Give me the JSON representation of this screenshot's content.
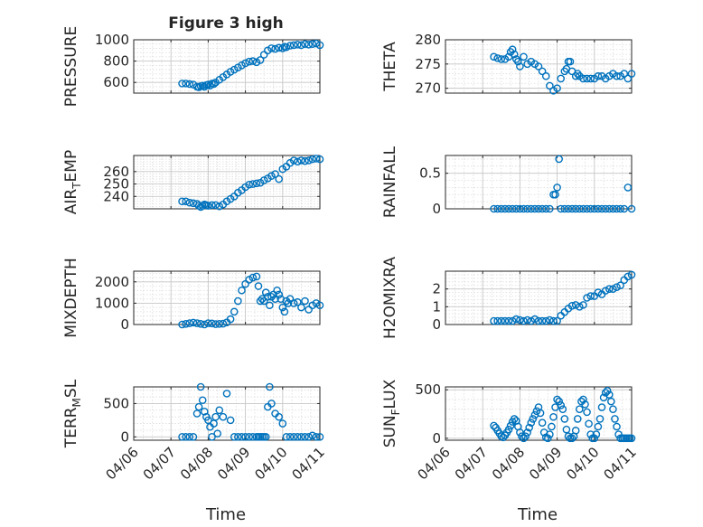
{
  "title": "Figure 3 high",
  "xlabel": "Time",
  "x_tick_labels": [
    "04/06",
    "04/07",
    "04/08",
    "04/09",
    "04/10",
    "04/11"
  ],
  "colors": {
    "marker": "#0072BD",
    "axes": "#262626",
    "grid": "#dcdcdc",
    "background": "#ffffff"
  },
  "chart_data": [
    {
      "type": "scatter",
      "ylabel": "PRESSURE",
      "xlim": [
        "04/06",
        "04/11"
      ],
      "ylim": [
        500,
        1000
      ],
      "yticks": [
        600,
        800,
        1000
      ],
      "grid": true,
      "x": [
        1.3,
        1.4,
        1.5,
        1.6,
        1.7,
        1.75,
        1.8,
        1.85,
        1.9,
        1.95,
        2.0,
        2.05,
        2.1,
        2.15,
        2.2,
        2.3,
        2.4,
        2.5,
        2.6,
        2.7,
        2.8,
        2.9,
        3.0,
        3.1,
        3.2,
        3.3,
        3.4,
        3.5,
        3.6,
        3.7,
        3.8,
        3.9,
        4.0,
        4.05,
        4.1,
        4.2,
        4.3,
        4.4,
        4.5,
        4.6,
        4.7,
        4.8,
        4.9,
        5.0
      ],
      "y": [
        590,
        590,
        585,
        580,
        560,
        555,
        565,
        570,
        560,
        575,
        580,
        570,
        590,
        585,
        600,
        625,
        650,
        675,
        700,
        720,
        740,
        760,
        780,
        795,
        800,
        790,
        810,
        860,
        900,
        920,
        915,
        925,
        920,
        935,
        930,
        945,
        950,
        955,
        950,
        960,
        955,
        960,
        965,
        950
      ]
    },
    {
      "type": "scatter",
      "ylabel": "THETA",
      "xlim": [
        "04/06",
        "04/11"
      ],
      "ylim": [
        269,
        280
      ],
      "yticks": [
        270,
        275,
        280
      ],
      "grid": true,
      "x": [
        1.3,
        1.4,
        1.5,
        1.6,
        1.7,
        1.75,
        1.8,
        1.85,
        1.9,
        1.95,
        2.0,
        2.1,
        2.2,
        2.3,
        2.4,
        2.5,
        2.6,
        2.7,
        2.8,
        2.9,
        3.0,
        3.1,
        3.2,
        3.25,
        3.3,
        3.35,
        3.4,
        3.5,
        3.55,
        3.6,
        3.7,
        3.8,
        3.9,
        4.0,
        4.1,
        4.2,
        4.3,
        4.4,
        4.5,
        4.6,
        4.7,
        4.8,
        4.9,
        5.0
      ],
      "y": [
        276.5,
        276.2,
        276.0,
        276.0,
        276.5,
        277.5,
        278.0,
        277.0,
        276.0,
        275.5,
        274.5,
        276.5,
        275.0,
        275.5,
        275.0,
        274.5,
        273.5,
        272.5,
        270.5,
        269.5,
        270.0,
        272.0,
        273.5,
        274.0,
        275.5,
        275.5,
        273.5,
        272.5,
        273.0,
        272.5,
        272.0,
        272.0,
        272.0,
        272.0,
        272.5,
        272.5,
        272.0,
        272.5,
        273.0,
        272.5,
        272.5,
        273.0,
        272.0,
        273.0
      ]
    },
    {
      "type": "scatter",
      "ylabel": "AIR_TEMP",
      "xlim": [
        "04/06",
        "04/11"
      ],
      "ylim": [
        230,
        273
      ],
      "yticks": [
        240,
        250,
        260
      ],
      "grid": true,
      "x": [
        1.3,
        1.4,
        1.5,
        1.6,
        1.7,
        1.75,
        1.8,
        1.85,
        1.9,
        1.95,
        2.0,
        2.1,
        2.2,
        2.3,
        2.4,
        2.5,
        2.6,
        2.7,
        2.8,
        2.9,
        3.0,
        3.1,
        3.2,
        3.3,
        3.4,
        3.5,
        3.6,
        3.7,
        3.8,
        3.9,
        4.0,
        4.1,
        4.2,
        4.3,
        4.4,
        4.5,
        4.6,
        4.7,
        4.8,
        4.9,
        5.0
      ],
      "y": [
        236,
        236,
        235,
        234.5,
        234,
        232.5,
        231.5,
        232.5,
        233.5,
        233,
        232.5,
        233,
        233,
        232,
        233.5,
        236,
        238,
        240,
        243,
        245,
        247.5,
        249.5,
        250,
        250.5,
        251,
        253,
        254.5,
        256.5,
        258,
        254,
        262,
        264,
        267,
        269,
        268,
        269,
        268.5,
        269,
        270,
        270.5,
        270
      ]
    },
    {
      "type": "scatter",
      "ylabel": "RAINFALL",
      "xlim": [
        "04/06",
        "04/11"
      ],
      "ylim": [
        0,
        0.75
      ],
      "yticks": [
        0,
        0.5
      ],
      "grid": true,
      "x": [
        1.3,
        1.4,
        1.5,
        1.6,
        1.7,
        1.8,
        1.9,
        2.0,
        2.1,
        2.2,
        2.3,
        2.4,
        2.5,
        2.6,
        2.7,
        2.8,
        2.9,
        2.95,
        3.0,
        3.05,
        3.1,
        3.2,
        3.3,
        3.4,
        3.5,
        3.6,
        3.7,
        3.8,
        3.9,
        4.0,
        4.1,
        4.2,
        4.3,
        4.4,
        4.5,
        4.6,
        4.7,
        4.8,
        4.9,
        5.0
      ],
      "y": [
        0,
        0,
        0,
        0,
        0,
        0,
        0,
        0,
        0,
        0,
        0,
        0,
        0,
        0,
        0,
        0,
        0.2,
        0.2,
        0.3,
        0.7,
        0,
        0,
        0,
        0,
        0,
        0,
        0,
        0,
        0,
        0,
        0,
        0,
        0,
        0,
        0,
        0,
        0,
        0,
        0.3,
        0
      ]
    },
    {
      "type": "scatter",
      "ylabel": "MIXDEPTH",
      "xlim": [
        "04/06",
        "04/11"
      ],
      "ylim": [
        0,
        2500
      ],
      "yticks": [
        0,
        1000,
        2000
      ],
      "grid": true,
      "x": [
        1.3,
        1.4,
        1.5,
        1.6,
        1.7,
        1.8,
        1.9,
        2.0,
        2.1,
        2.2,
        2.3,
        2.4,
        2.5,
        2.6,
        2.7,
        2.8,
        2.9,
        3.0,
        3.1,
        3.2,
        3.3,
        3.35,
        3.4,
        3.45,
        3.5,
        3.55,
        3.6,
        3.65,
        3.7,
        3.75,
        3.8,
        3.85,
        3.9,
        3.95,
        4.0,
        4.05,
        4.1,
        4.15,
        4.2,
        4.3,
        4.4,
        4.5,
        4.6,
        4.7,
        4.8,
        4.9,
        5.0
      ],
      "y": [
        0,
        30,
        60,
        90,
        60,
        30,
        0,
        60,
        50,
        20,
        30,
        40,
        100,
        250,
        600,
        1100,
        1600,
        1900,
        2100,
        2200,
        2250,
        1800,
        1100,
        1200,
        1100,
        1500,
        1300,
        900,
        1300,
        1400,
        1200,
        1600,
        1400,
        1200,
        800,
        600,
        1100,
        1000,
        1200,
        1000,
        1050,
        800,
        1100,
        700,
        900,
        1000,
        900
      ]
    },
    {
      "type": "scatter",
      "ylabel": "H2OMIXRA",
      "xlim": [
        "04/06",
        "04/11"
      ],
      "ylim": [
        0,
        3
      ],
      "yticks": [
        0,
        1,
        2
      ],
      "grid": true,
      "x": [
        1.3,
        1.4,
        1.5,
        1.6,
        1.7,
        1.8,
        1.9,
        2.0,
        2.1,
        2.2,
        2.3,
        2.4,
        2.5,
        2.6,
        2.7,
        2.8,
        2.9,
        3.0,
        3.1,
        3.2,
        3.3,
        3.4,
        3.5,
        3.6,
        3.7,
        3.8,
        3.9,
        4.0,
        4.1,
        4.2,
        4.3,
        4.4,
        4.5,
        4.6,
        4.7,
        4.8,
        4.9,
        5.0
      ],
      "y": [
        0.2,
        0.2,
        0.2,
        0.2,
        0.2,
        0.2,
        0.3,
        0.25,
        0.2,
        0.25,
        0.2,
        0.3,
        0.2,
        0.2,
        0.2,
        0.25,
        0.2,
        0.2,
        0.5,
        0.7,
        0.9,
        1.05,
        1.1,
        1.0,
        1.1,
        1.5,
        1.6,
        1.6,
        1.8,
        1.7,
        1.9,
        2.0,
        2.0,
        2.1,
        2.2,
        2.5,
        2.7,
        2.8
      ]
    },
    {
      "type": "scatter",
      "ylabel": "TERR_MSL",
      "xlim": [
        "04/06",
        "04/11"
      ],
      "ylim": [
        -50,
        750
      ],
      "yticks": [
        0,
        500
      ],
      "grid": true,
      "x": [
        1.3,
        1.4,
        1.5,
        1.6,
        1.7,
        1.75,
        1.8,
        1.85,
        1.9,
        1.95,
        2.0,
        2.05,
        2.1,
        2.15,
        2.2,
        2.25,
        2.3,
        2.4,
        2.5,
        2.6,
        2.7,
        2.8,
        2.9,
        3.0,
        3.1,
        3.2,
        3.3,
        3.35,
        3.4,
        3.45,
        3.5,
        3.55,
        3.6,
        3.65,
        3.7,
        3.8,
        3.9,
        4.0,
        4.1,
        4.2,
        4.3,
        4.4,
        4.5,
        4.6,
        4.7,
        4.8,
        4.9,
        5.0
      ],
      "y": [
        0,
        0,
        0,
        0,
        350,
        450,
        750,
        550,
        380,
        300,
        250,
        150,
        0,
        200,
        300,
        50,
        400,
        300,
        650,
        250,
        0,
        0,
        0,
        0,
        0,
        0,
        0,
        0,
        0,
        0,
        0,
        0,
        450,
        750,
        500,
        350,
        300,
        200,
        0,
        0,
        0,
        0,
        0,
        0,
        0,
        20,
        0,
        0
      ]
    },
    {
      "type": "scatter",
      "ylabel": "SUN_FLUX",
      "xlim": [
        "04/06",
        "04/11"
      ],
      "ylim": [
        -20,
        530
      ],
      "yticks": [
        0,
        500
      ],
      "grid": true,
      "x": [
        1.3,
        1.35,
        1.4,
        1.45,
        1.5,
        1.55,
        1.6,
        1.65,
        1.7,
        1.75,
        1.8,
        1.85,
        1.9,
        1.95,
        2.0,
        2.05,
        2.1,
        2.15,
        2.2,
        2.25,
        2.3,
        2.35,
        2.4,
        2.45,
        2.5,
        2.55,
        2.6,
        2.65,
        2.7,
        2.75,
        2.8,
        2.85,
        2.9,
        2.95,
        3.0,
        3.05,
        3.1,
        3.15,
        3.2,
        3.25,
        3.3,
        3.35,
        3.4,
        3.45,
        3.5,
        3.55,
        3.6,
        3.65,
        3.7,
        3.75,
        3.8,
        3.85,
        3.9,
        3.95,
        4.0,
        4.05,
        4.1,
        4.15,
        4.2,
        4.25,
        4.3,
        4.35,
        4.4,
        4.45,
        4.5,
        4.55,
        4.6,
        4.65,
        4.7,
        4.75,
        4.8,
        4.85,
        4.9,
        4.95,
        5.0
      ],
      "y": [
        130,
        110,
        80,
        50,
        20,
        10,
        30,
        60,
        90,
        130,
        170,
        200,
        180,
        120,
        60,
        20,
        0,
        20,
        60,
        110,
        160,
        200,
        240,
        280,
        320,
        260,
        160,
        60,
        10,
        0,
        40,
        120,
        220,
        320,
        400,
        380,
        340,
        300,
        200,
        90,
        20,
        0,
        0,
        20,
        80,
        200,
        300,
        380,
        400,
        350,
        270,
        150,
        40,
        0,
        0,
        40,
        120,
        200,
        320,
        420,
        470,
        490,
        450,
        380,
        300,
        200,
        120,
        40,
        0,
        0,
        0,
        0,
        0,
        0,
        0
      ]
    }
  ]
}
